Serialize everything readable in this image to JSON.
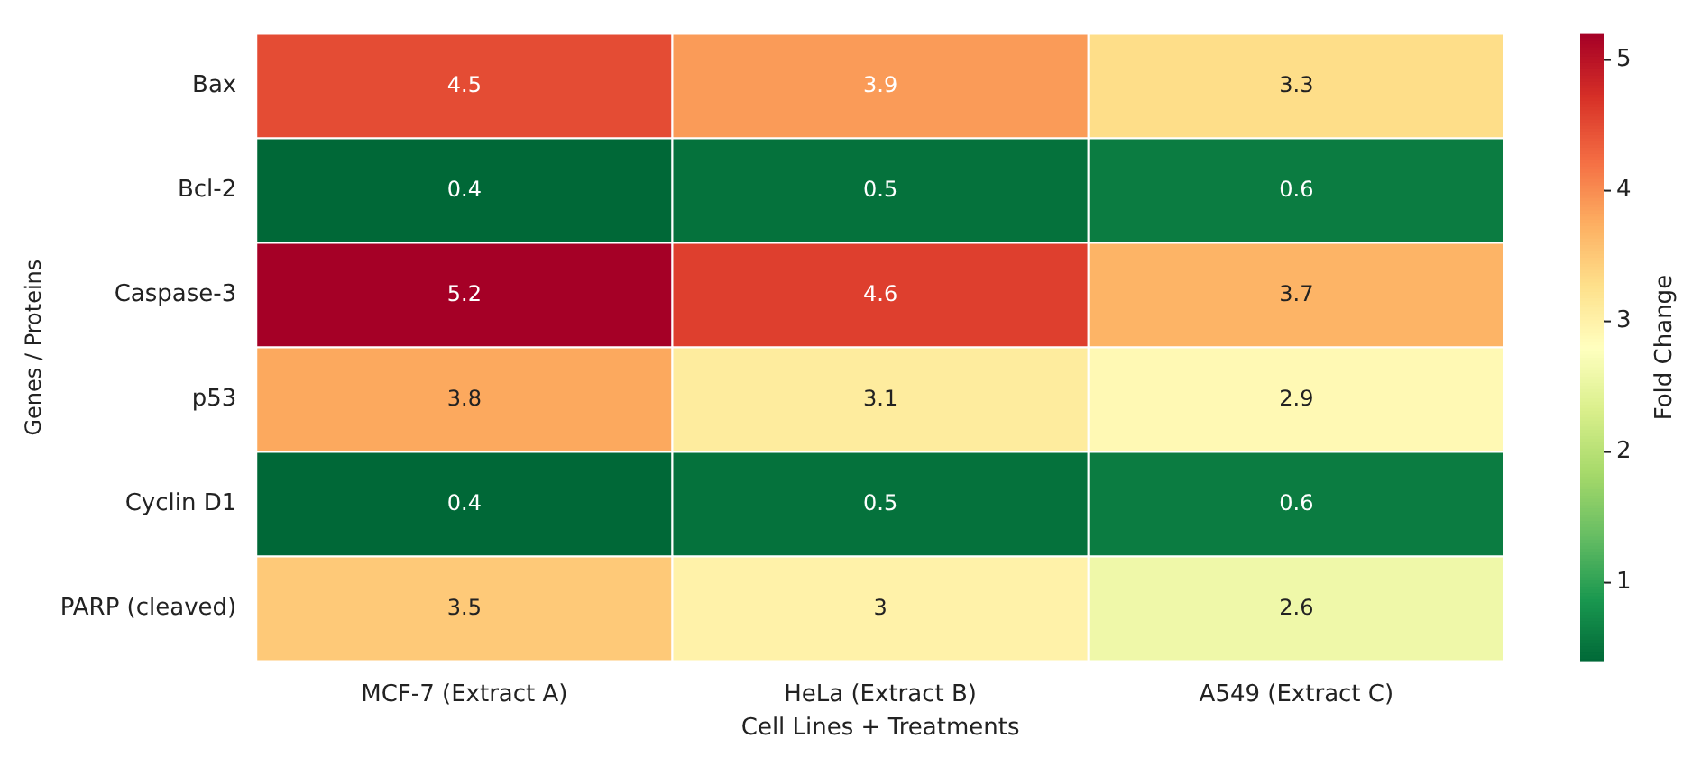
{
  "chart_data": {
    "type": "heatmap",
    "xlabel": "Cell Lines + Treatments",
    "ylabel": "Genes / Proteins",
    "clabel": "Fold Change",
    "categories": [
      "MCF-7 (Extract A)",
      "HeLa (Extract B)",
      "A549 (Extract C)"
    ],
    "y_categories": [
      "Bax",
      "Bcl-2",
      "Caspase-3",
      "p53",
      "Cyclin D1",
      "PARP (cleaved)"
    ],
    "cells": [
      [
        4.5,
        3.9,
        3.3
      ],
      [
        0.4,
        0.5,
        0.6
      ],
      [
        5.2,
        4.6,
        3.7
      ],
      [
        3.8,
        3.1,
        2.9
      ],
      [
        0.4,
        0.5,
        0.6
      ],
      [
        3.5,
        3,
        2.6
      ]
    ],
    "data_labels": true,
    "clim": [
      0.4,
      5.2
    ],
    "cticks": [
      1,
      2,
      3,
      4,
      5
    ]
  }
}
